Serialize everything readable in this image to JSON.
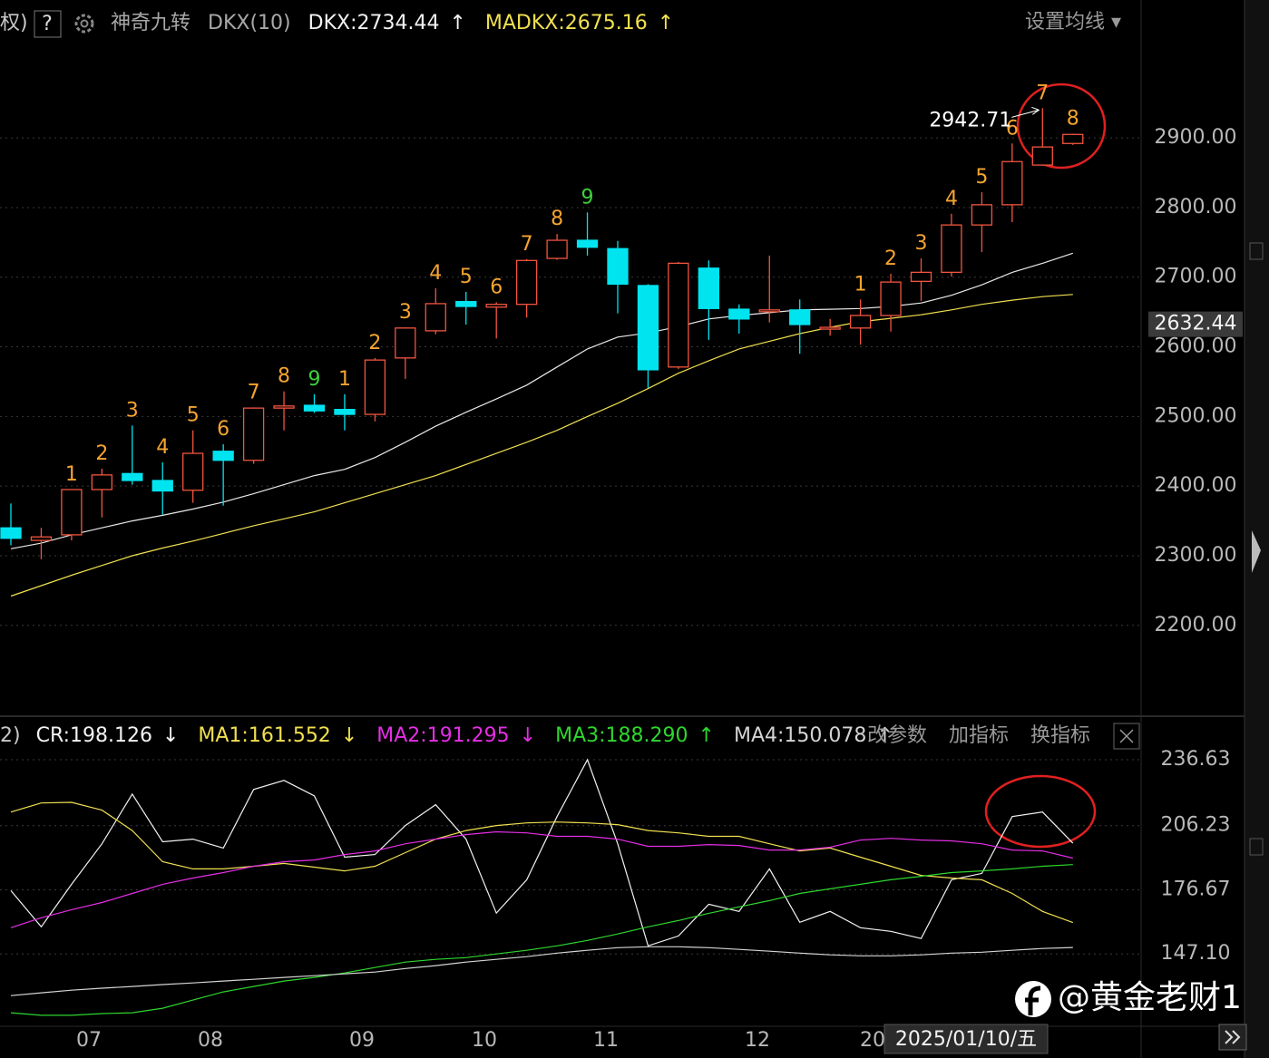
{
  "header": {
    "prefix": "权)",
    "help": "?",
    "indicator_name": "神奇九转",
    "indicator_param": "DKX(10)",
    "settings": "设置均线 ▾"
  },
  "chart_data": [
    {
      "type": "candlestick",
      "open": [
        2340,
        2322,
        2330,
        2395,
        2418,
        2408,
        2394,
        2450,
        2437,
        2512,
        2516,
        2510,
        2503,
        2584,
        2623,
        2665,
        2657,
        2661,
        2727,
        2753,
        2741,
        2688,
        2571,
        2713,
        2654,
        2651,
        2653,
        2626,
        2627,
        2645,
        2694,
        2707,
        2775,
        2804,
        2861,
        2892
      ],
      "high": [
        2375,
        2340,
        2395,
        2425,
        2487,
        2434,
        2480,
        2460,
        2513,
        2536,
        2532,
        2532,
        2584,
        2628,
        2684,
        2679,
        2664,
        2726,
        2762,
        2793,
        2752,
        2690,
        2722,
        2724,
        2661,
        2731,
        2668,
        2640,
        2668,
        2705,
        2727,
        2791,
        2822,
        2892,
        2942.71,
        2906
      ],
      "low": [
        2315,
        2295,
        2322,
        2355,
        2402,
        2359,
        2376,
        2372,
        2432,
        2480,
        2505,
        2480,
        2493,
        2554,
        2618,
        2632,
        2612,
        2642,
        2725,
        2731,
        2648,
        2541,
        2568,
        2610,
        2619,
        2635,
        2590,
        2616,
        2603,
        2622,
        2666,
        2701,
        2736,
        2779,
        2860,
        2890
      ],
      "close": [
        2325,
        2327,
        2395,
        2416,
        2408,
        2393,
        2447,
        2437,
        2512,
        2515,
        2508,
        2503,
        2581,
        2627,
        2662,
        2658,
        2661,
        2724,
        2753,
        2743,
        2690,
        2567,
        2720,
        2655,
        2640,
        2653,
        2632,
        2628,
        2645,
        2693,
        2707,
        2775,
        2804,
        2866,
        2887,
        2905
      ],
      "up_color": "#f2553f",
      "down_color": "#00e4f0",
      "td_sequence": [
        null,
        null,
        1,
        2,
        3,
        4,
        5,
        6,
        7,
        8,
        9,
        1,
        2,
        3,
        4,
        5,
        6,
        7,
        8,
        9,
        null,
        null,
        null,
        null,
        null,
        null,
        null,
        null,
        1,
        2,
        3,
        4,
        5,
        6,
        7,
        8
      ],
      "td_color": "#f5a431",
      "td_complete": 9,
      "td_complete_color": "#3ed13e",
      "high_annotation": "2942.71",
      "series": [
        {
          "name": "DKX:2734.44",
          "trend": "↑",
          "color": "#e8e8e8",
          "values": [
            2310,
            2318,
            2330,
            2340,
            2350,
            2358,
            2367,
            2377,
            2389,
            2402,
            2415,
            2424,
            2441,
            2463,
            2486,
            2506,
            2525,
            2545,
            2571,
            2597,
            2614,
            2620,
            2629,
            2640,
            2645,
            2649,
            2653,
            2654,
            2655,
            2658,
            2663,
            2674,
            2689,
            2707,
            2720,
            2734.44
          ]
        },
        {
          "name": "MADKX:2675.16",
          "trend": "↑",
          "color": "#f0e050",
          "values": [
            2242,
            2257,
            2272,
            2286,
            2300,
            2311,
            2321,
            2332,
            2343,
            2353,
            2363,
            2376,
            2389,
            2402,
            2415,
            2431,
            2447,
            2463,
            2480,
            2500,
            2519,
            2540,
            2562,
            2580,
            2597,
            2608,
            2619,
            2628,
            2636,
            2641,
            2646,
            2653,
            2661,
            2667,
            2672,
            2675.16
          ]
        }
      ],
      "ylim": [
        2076,
        3046
      ],
      "yticks": [
        {
          "value": 2200,
          "label": "2200.00"
        },
        {
          "value": 2300,
          "label": "2300.00"
        },
        {
          "value": 2400,
          "label": "2400.00"
        },
        {
          "value": 2500,
          "label": "2500.00"
        },
        {
          "value": 2600,
          "label": "2600.00"
        },
        {
          "value": 2700,
          "label": "2700.00"
        },
        {
          "value": 2800,
          "label": "2800.00"
        },
        {
          "value": 2900,
          "label": "2900.00"
        }
      ],
      "last_price": 2632.44,
      "grid": true
    },
    {
      "type": "line",
      "prefix": "2)",
      "series": [
        {
          "name": "CR:198.126",
          "trend": "↓",
          "color": "#f2f2f2",
          "values": [
            176.3,
            159.6,
            179.2,
            197.9,
            220.8,
            198.8,
            200,
            195.9,
            222.9,
            227.1,
            220,
            191.7,
            192.9,
            206.3,
            215.9,
            200,
            165.9,
            181.3,
            210.4,
            236.63,
            197.9,
            150.85,
            155.4,
            170,
            166.7,
            186.3,
            161.7,
            166.7,
            159.2,
            157.5,
            154.2,
            181.3,
            184.2,
            210.4,
            212.5,
            198.126
          ]
        },
        {
          "name": "MA1:161.552",
          "trend": "↓",
          "color": "#f0e050",
          "values": [
            212.5,
            216.7,
            217,
            213.4,
            204,
            189.6,
            186.3,
            186.3,
            187.5,
            188.8,
            187.1,
            185.4,
            187.5,
            193.8,
            200,
            204,
            206.3,
            207.5,
            207.9,
            207.5,
            206.7,
            204,
            202.9,
            201.3,
            201.3,
            197.9,
            194.6,
            195.9,
            191.7,
            187.5,
            183.3,
            182.1,
            181.3,
            175,
            166.7,
            161.552
          ]
        },
        {
          "name": "MA2:191.295",
          "trend": "↓",
          "color": "#e42ee4",
          "values": [
            159.2,
            163.8,
            167.5,
            170.8,
            175,
            179.2,
            182.1,
            184.6,
            187.5,
            189.6,
            190.4,
            192.9,
            194.6,
            197.9,
            200,
            202.1,
            203.4,
            202.9,
            201.3,
            201.3,
            200,
            196.7,
            196.7,
            197.5,
            197.1,
            195,
            195,
            196.3,
            199.6,
            200.4,
            199.6,
            199.2,
            197.9,
            195,
            194.6,
            191.295
          ]
        },
        {
          "name": "MA3:188.290",
          "trend": "↑",
          "color": "#2ed62e",
          "values": [
            120,
            118.8,
            118.8,
            119.6,
            120,
            122.1,
            125.85,
            129.6,
            132.1,
            134.6,
            136.3,
            138.35,
            140.85,
            143.35,
            144.6,
            145.4,
            147.1,
            148.8,
            150.85,
            153.35,
            156.3,
            159.6,
            162.5,
            165.85,
            168.8,
            171.7,
            175,
            177.1,
            179.2,
            181.3,
            182.9,
            184.6,
            185.4,
            186.3,
            187.5,
            188.29
          ]
        },
        {
          "name": "MA4:150.078",
          "trend": "↑",
          "color": "#d4d4d4",
          "values": [
            127.9,
            129.2,
            130.4,
            131.3,
            132.1,
            133,
            133.75,
            134.6,
            135.4,
            136.3,
            137.1,
            137.9,
            138.75,
            140.4,
            141.7,
            143.35,
            144.6,
            145.85,
            147.5,
            148.8,
            150,
            150.4,
            150.4,
            150,
            149.2,
            148.35,
            147.5,
            146.7,
            146.25,
            146.25,
            146.7,
            147.5,
            147.9,
            148.8,
            149.6,
            150.078
          ]
        }
      ],
      "ylim": [
        114.6,
        240.8
      ],
      "yticks": [
        {
          "value": 147.1,
          "label": "147.10"
        },
        176.67,
        206.23,
        236.63
      ],
      "grid": true,
      "buttons": [
        "改参数",
        "加指标",
        "换指标"
      ]
    }
  ],
  "x_axis": {
    "labels": [
      "07",
      "08",
      "09",
      "10",
      "11",
      "12",
      "20"
    ],
    "cursor_date": "2025/01/10/五"
  },
  "watermark": "@黄金老财1"
}
